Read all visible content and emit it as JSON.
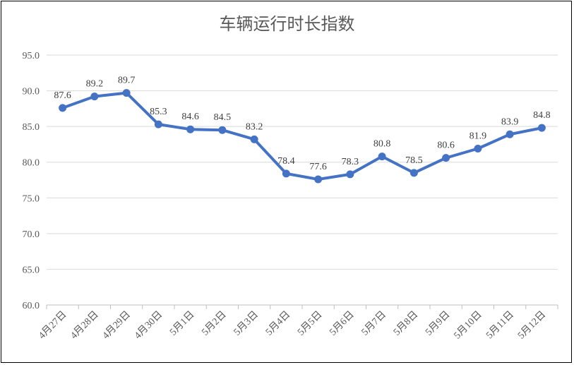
{
  "chart_data": {
    "type": "line",
    "title": "车辆运行时长指数",
    "categories": [
      "4月27日",
      "4月28日",
      "4月29日",
      "4月30日",
      "5月1日",
      "5月2日",
      "5月3日",
      "5月4日",
      "5月5日",
      "5月6日",
      "5月7日",
      "5月8日",
      "5月9日",
      "5月10日",
      "5月11日",
      "5月12日"
    ],
    "series": [
      {
        "values": [
          87.6,
          89.2,
          89.7,
          85.3,
          84.6,
          84.5,
          83.2,
          78.4,
          77.6,
          78.3,
          80.8,
          78.5,
          80.6,
          81.9,
          83.9,
          84.8
        ]
      }
    ],
    "data_labels": [
      "87.6",
      "89.2",
      "89.7",
      "85.3",
      "84.6",
      "84.5",
      "83.2",
      "78.4",
      "77.6",
      "78.3",
      "80.8",
      "78.5",
      "80.6",
      "81.9",
      "83.9",
      "84.8"
    ],
    "y_ticks": [
      "60.0",
      "65.0",
      "70.0",
      "75.0",
      "80.0",
      "85.0",
      "90.0",
      "95.0"
    ],
    "ylim": [
      60,
      95
    ],
    "grid": true,
    "line_color": "#4472C4",
    "grid_color": "#D9D9D9",
    "axis_color": "#BFBFBF"
  }
}
